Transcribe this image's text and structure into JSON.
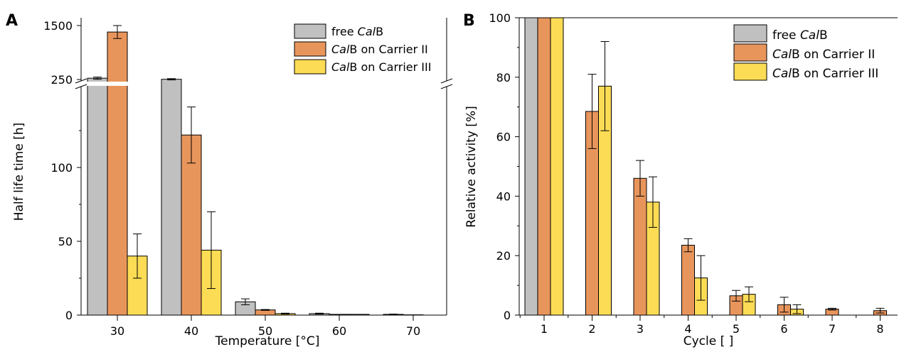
{
  "figure": {
    "colors": {
      "free": "#c0c0c0",
      "carrier2": "#e8955c",
      "carrier3": "#fcdc55"
    }
  },
  "chart_data": [
    {
      "panel_label": "A",
      "type": "bar",
      "xlabel": "Temperature [°C]",
      "ylabel": "Half life time [h]",
      "categories": [
        "30",
        "40",
        "50",
        "60",
        "70"
      ],
      "y_axis_break": {
        "lower_range": [
          0,
          150
        ],
        "upper_ticks": [
          "250",
          "1500"
        ]
      },
      "lower_ticks": [
        "0",
        "50",
        "100"
      ],
      "legend": {
        "placement": "top-right"
      },
      "series": [
        {
          "name": "free CalB",
          "color": "#c0c0c0",
          "values": [
            280,
            255,
            9,
            1,
            0.5
          ],
          "errors": [
            25,
            15,
            2,
            0.3,
            0.2
          ]
        },
        {
          "name": "CalB on Carrier II",
          "color": "#e8955c",
          "values": [
            1350,
            122,
            3.5,
            0.5,
            0.2
          ],
          "errors": [
            150,
            19,
            0.3,
            0.1,
            0.1
          ]
        },
        {
          "name": "CalB on Carrier III",
          "color": "#fcdc55",
          "values": [
            40,
            44,
            1,
            0.5,
            0
          ],
          "errors": [
            15,
            26,
            0.3,
            0.1,
            0
          ]
        }
      ]
    },
    {
      "panel_label": "B",
      "type": "bar",
      "xlabel": "Cycle [ ]",
      "ylabel": "Relative activity [%]",
      "categories": [
        "1",
        "2",
        "3",
        "4",
        "5",
        "6",
        "7",
        "8"
      ],
      "ylim": [
        0,
        100
      ],
      "yticks": [
        "0",
        "20",
        "40",
        "60",
        "80",
        "100"
      ],
      "legend": {
        "placement": "top-right"
      },
      "series": [
        {
          "name": "free CalB",
          "color": "#c0c0c0",
          "values": [
            100,
            null,
            null,
            null,
            null,
            null,
            null,
            null
          ],
          "errors": [
            0,
            0,
            0,
            0,
            0,
            0,
            0,
            0
          ]
        },
        {
          "name": "CalB on Carrier II",
          "color": "#e8955c",
          "values": [
            100,
            68.5,
            46,
            23.5,
            6.5,
            3.5,
            2,
            1.5
          ],
          "errors": [
            0,
            12.5,
            6,
            2.2,
            1.8,
            2.5,
            0.3,
            0.8
          ]
        },
        {
          "name": "CalB on Carrier III",
          "color": "#fcdc55",
          "values": [
            100,
            77,
            38,
            12.5,
            7,
            2,
            null,
            null
          ],
          "errors": [
            0,
            15,
            8.5,
            7.5,
            2.5,
            1.5,
            0,
            0
          ]
        }
      ]
    }
  ]
}
